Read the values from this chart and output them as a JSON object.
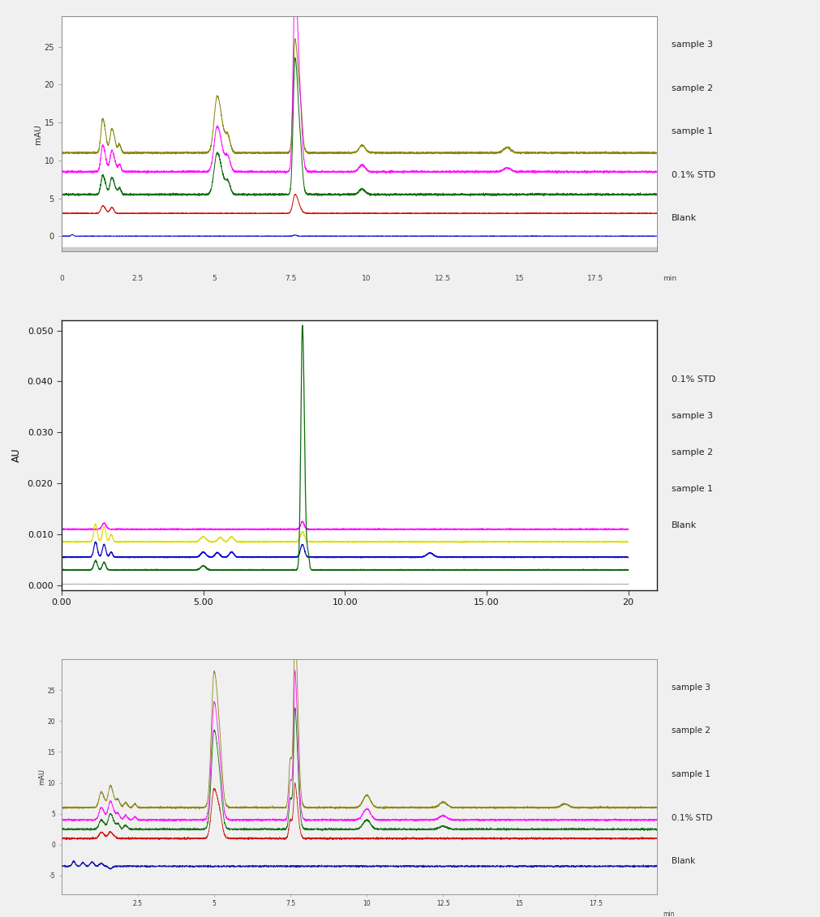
{
  "fig_bg": "#f0f0f0",
  "plot1": {
    "ylabel": "mAU",
    "xlabel": "min",
    "xlim": [
      0,
      19.5
    ],
    "ylim": [
      -2,
      29
    ],
    "yticks": [
      0,
      5,
      10,
      15,
      20,
      25
    ],
    "xtick_vals": [
      0,
      2.5,
      5,
      7.5,
      10,
      12.5,
      15,
      17.5
    ],
    "xtick_labels": [
      "0",
      "2.5",
      "5",
      "7.5",
      "10",
      "12.5",
      "15",
      "17.5"
    ],
    "plot_bg": "#ffffff",
    "frame_bg": "#d8d8d8",
    "legend": [
      "sample 3",
      "sample 2",
      "sample 1",
      "0.1% STD",
      "Blank"
    ],
    "colors": [
      "#808000",
      "#ff00ff",
      "#006400",
      "#cc0000",
      "#0000dd"
    ],
    "baselines": [
      11.0,
      8.5,
      5.5,
      3.0,
      0.0
    ]
  },
  "plot2": {
    "ylabel": "AU",
    "xlabel": "",
    "xlim": [
      0,
      21
    ],
    "ylim": [
      -0.001,
      0.052
    ],
    "yticks": [
      0.0,
      0.01,
      0.02,
      0.03,
      0.04,
      0.05
    ],
    "xtick_vals": [
      0.0,
      5.0,
      10.0,
      15.0,
      20.0
    ],
    "xtick_labels": [
      "0.00",
      "5.00",
      "10.00",
      "15.00",
      "20"
    ],
    "plot_bg": "#ffffff",
    "frame_bg": "#ffffff",
    "legend": [
      "0.1% STD",
      "sample 3",
      "sample 2",
      "sample 1",
      "Blank"
    ],
    "colors": [
      "#ff00ff",
      "#dddd00",
      "#0000cc",
      "#006400",
      "#aaaaaa"
    ],
    "baselines": [
      0.011,
      0.0085,
      0.0055,
      0.003,
      0.0002
    ]
  },
  "plot3": {
    "ylabel": "mAU",
    "xlabel": "min",
    "xlim": [
      0,
      19.5
    ],
    "ylim": [
      -8,
      30
    ],
    "yticks": [
      -5,
      0,
      5,
      10,
      15,
      20,
      25
    ],
    "xtick_vals": [
      2.5,
      5.0,
      7.5,
      10.0,
      12.5,
      15.0,
      17.5
    ],
    "xtick_labels": [
      "2.5",
      "5",
      "7.5",
      "10",
      "12.5",
      "15",
      "17.5"
    ],
    "plot_bg": "#f0f0f0",
    "frame_bg": "#b8b8b8",
    "legend": [
      "sample 3",
      "sample 2",
      "sample 1",
      "0.1% STD",
      "Blank"
    ],
    "colors": [
      "#808000",
      "#ff00ff",
      "#006400",
      "#cc0000",
      "#0000aa"
    ],
    "baselines": [
      6.0,
      4.0,
      2.5,
      1.0,
      -3.5
    ]
  }
}
